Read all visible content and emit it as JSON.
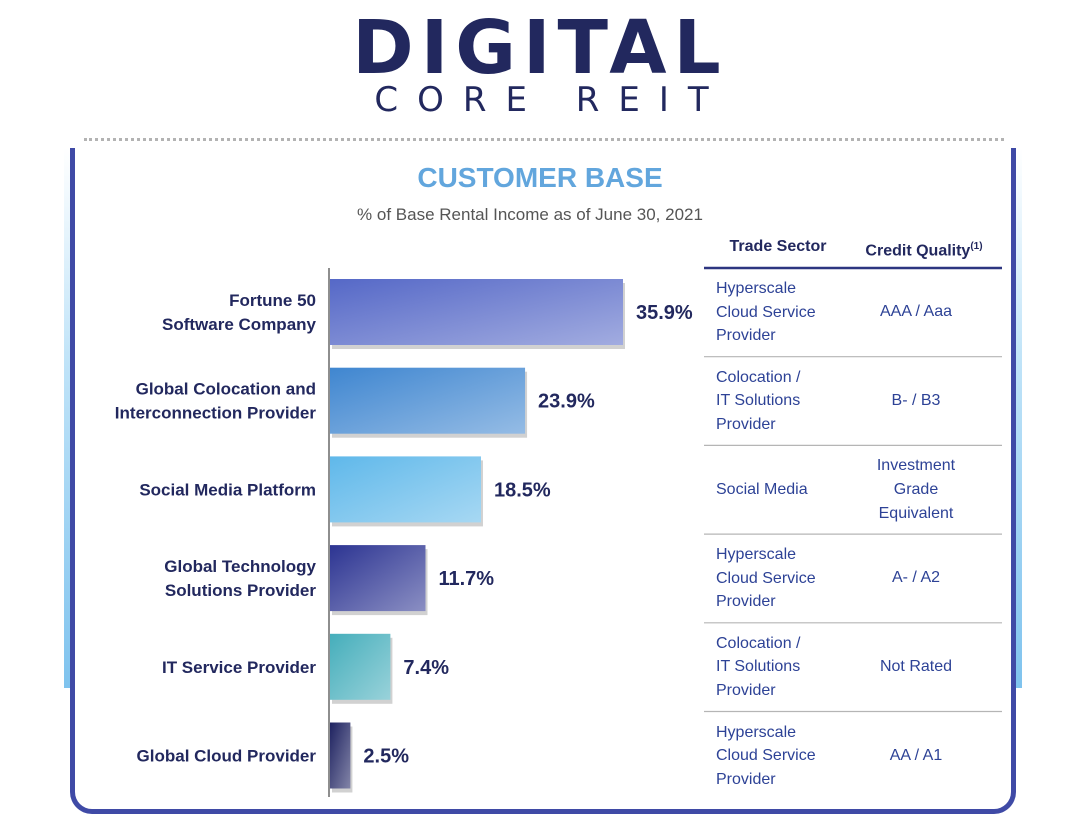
{
  "logo": {
    "main": "DIGITAL",
    "sub": "CORE REIT"
  },
  "chart_data": {
    "type": "bar",
    "orientation": "horizontal",
    "title": "CUSTOMER BASE",
    "subtitle": "% of Base Rental Income as of June 30, 2021",
    "categories": [
      "Fortune 50\nSoftware Company",
      "Global Colocation and\nInterconnection Provider",
      "Social Media Platform",
      "Global Technology\nSolutions Provider",
      "IT Service Provider",
      "Global Cloud Provider"
    ],
    "values": [
      35.9,
      23.9,
      18.5,
      11.7,
      7.4,
      2.5
    ],
    "data_labels": [
      "35.9%",
      "23.9%",
      "18.5%",
      "11.7%",
      "7.4%",
      "2.5%"
    ],
    "bar_colors": [
      "#5568c7",
      "#3f86d0",
      "#5fb8ea",
      "#2c3492",
      "#45aebb",
      "#1e2260"
    ],
    "xlim": [
      0,
      35.9
    ],
    "grid": false,
    "legend": "none"
  },
  "table": {
    "headers": {
      "sector": "Trade Sector",
      "credit": "Credit Quality",
      "credit_footnote": "(1)"
    },
    "rows": [
      {
        "sector": "Hyperscale\nCloud Service\nProvider",
        "credit": "AAA / Aaa"
      },
      {
        "sector": "Colocation /\nIT Solutions\nProvider",
        "credit": "B- / B3"
      },
      {
        "sector": "Social Media",
        "credit": "Investment\nGrade\nEquivalent"
      },
      {
        "sector": "Hyperscale\nCloud Service\nProvider",
        "credit": "A- / A2"
      },
      {
        "sector": "Colocation /\nIT Solutions\nProvider",
        "credit": "Not Rated"
      },
      {
        "sector": "Hyperscale\nCloud Service\nProvider",
        "credit": "AA / A1"
      }
    ]
  },
  "colors": {
    "navy": "#22285e",
    "title_blue": "#62a6dd",
    "table_text": "#2d4296",
    "border": "#3f4aa6"
  }
}
